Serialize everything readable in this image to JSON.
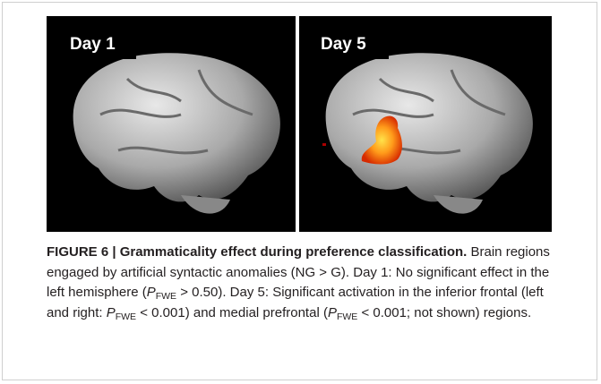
{
  "figure": {
    "panels": [
      {
        "label": "Day 1"
      },
      {
        "label": "Day 5"
      }
    ],
    "caption": {
      "title": "FIGURE 6 | Grammaticality effect during preference classification.",
      "parts": [
        " Brain regions engaged by artificial syntactic anomalies (NG > G). Day 1: No significant effect in the left hemisphere (",
        "P",
        "FWE",
        " > 0.50). Day 5: Significant activation in the inferior frontal (left and right: ",
        "P",
        "FWE",
        " < 0.001) and medial prefrontal (",
        "P",
        "FWE",
        " < 0.001; not shown) regions."
      ]
    }
  }
}
